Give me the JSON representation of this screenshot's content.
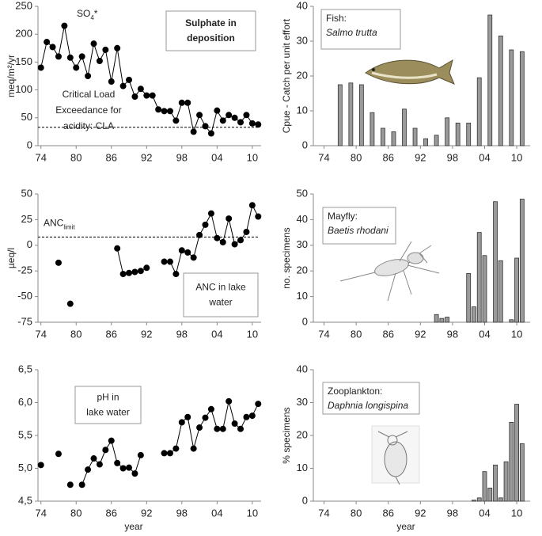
{
  "chart_data": [
    {
      "type": "line",
      "color": "#000000",
      "x": [
        1974,
        1975,
        1976,
        1977,
        1978,
        1979,
        1980,
        1981,
        1982,
        1983,
        1984,
        1985,
        1986,
        1987,
        1988,
        1989,
        1990,
        1991,
        1992,
        1993,
        1994,
        1995,
        1996,
        1997,
        1998,
        1999,
        2000,
        2001,
        2002,
        2003,
        2004,
        2005,
        2006,
        2007,
        2008,
        2009,
        2010,
        2011
      ],
      "values": [
        140,
        186,
        177,
        160,
        215,
        158,
        140,
        160,
        125,
        183,
        152,
        172,
        115,
        175,
        107,
        118,
        88,
        102,
        90,
        90,
        65,
        62,
        62,
        45,
        77,
        77,
        25,
        55,
        35,
        22,
        63,
        45,
        55,
        50,
        42,
        55,
        40,
        38
      ],
      "xlim": [
        1973.5,
        2011.5
      ],
      "xticks": [
        {
          "value": 1974,
          "label": "74"
        },
        {
          "value": 1980,
          "label": "80"
        },
        {
          "value": 1986,
          "label": "86"
        },
        {
          "value": 1992,
          "label": "92"
        },
        {
          "value": 1998,
          "label": "98"
        },
        {
          "value": 2004,
          "label": "04"
        },
        {
          "value": 2010,
          "label": "10"
        }
      ],
      "ylim": [
        0,
        250
      ],
      "yticks": [
        0,
        50,
        100,
        150,
        200,
        250
      ],
      "ylabel": "meq/m²/yr",
      "series_label": {
        "text": "SO",
        "sub": "4",
        "suffix": "*"
      },
      "reference": {
        "value": 33,
        "label": [
          "Critical Load",
          "Exceedance for",
          "acidity: CLA"
        ]
      },
      "box": [
        "Sulphate in",
        "deposition"
      ]
    },
    {
      "type": "line",
      "color": "#000000",
      "x": [
        1974,
        1975,
        1976,
        1977,
        1978,
        1979,
        1980,
        1981,
        1982,
        1983,
        1984,
        1985,
        1986,
        1987,
        1988,
        1989,
        1990,
        1991,
        1992,
        1993,
        1994,
        1995,
        1996,
        1997,
        1998,
        1999,
        2000,
        2001,
        2002,
        2003,
        2004,
        2005,
        2006,
        2007,
        2008,
        2009,
        2010,
        2011
      ],
      "values": [
        null,
        null,
        null,
        -17,
        null,
        -57,
        null,
        null,
        null,
        null,
        null,
        null,
        null,
        -3,
        -28,
        -27,
        -26,
        -25,
        -22,
        null,
        null,
        -16,
        -16,
        -28,
        -5,
        -7,
        -12,
        10,
        20,
        31,
        7,
        3,
        26,
        1,
        5,
        13,
        39,
        28
      ],
      "xlim": [
        1973.5,
        2011.5
      ],
      "xticks": [
        {
          "value": 1974,
          "label": "74"
        },
        {
          "value": 1980,
          "label": "80"
        },
        {
          "value": 1986,
          "label": "86"
        },
        {
          "value": 1992,
          "label": "92"
        },
        {
          "value": 1998,
          "label": "98"
        },
        {
          "value": 2004,
          "label": "04"
        },
        {
          "value": 2010,
          "label": "10"
        }
      ],
      "ylim": [
        -75,
        50
      ],
      "yticks": [
        -75,
        -50,
        -25,
        0,
        25,
        50
      ],
      "ylabel": "µeq/l",
      "reference": {
        "value": 8,
        "text": "ANC",
        "sub": "limit"
      },
      "box": [
        "ANC in lake",
        "water"
      ]
    },
    {
      "type": "line",
      "color": "#000000",
      "x": [
        1974,
        1975,
        1976,
        1977,
        1978,
        1979,
        1980,
        1981,
        1982,
        1983,
        1984,
        1985,
        1986,
        1987,
        1988,
        1989,
        1990,
        1991,
        1992,
        1993,
        1994,
        1995,
        1996,
        1997,
        1998,
        1999,
        2000,
        2001,
        2002,
        2003,
        2004,
        2005,
        2006,
        2007,
        2008,
        2009,
        2010,
        2011
      ],
      "values": [
        5.05,
        null,
        null,
        5.22,
        null,
        4.75,
        null,
        4.75,
        4.98,
        5.15,
        5.06,
        5.28,
        5.42,
        5.08,
        5.0,
        5.01,
        4.92,
        5.2,
        null,
        null,
        null,
        5.23,
        5.23,
        5.3,
        5.7,
        5.78,
        5.3,
        5.62,
        5.77,
        5.9,
        5.6,
        5.6,
        6.02,
        5.68,
        5.6,
        5.78,
        5.8,
        5.98
      ],
      "xlim": [
        1973.5,
        2011.5
      ],
      "xticks": [
        {
          "value": 1974,
          "label": "74"
        },
        {
          "value": 1980,
          "label": "80"
        },
        {
          "value": 1986,
          "label": "86"
        },
        {
          "value": 1992,
          "label": "92"
        },
        {
          "value": 1998,
          "label": "98"
        },
        {
          "value": 2004,
          "label": "04"
        },
        {
          "value": 2010,
          "label": "10"
        }
      ],
      "ylim": [
        4.5,
        6.5
      ],
      "yticks": [
        {
          "value": 4.5,
          "label": "4,5"
        },
        {
          "value": 5.0,
          "label": "5,0"
        },
        {
          "value": 5.5,
          "label": "5,5"
        },
        {
          "value": 6.0,
          "label": "6,0"
        },
        {
          "value": 6.5,
          "label": "6,5"
        }
      ],
      "xlabel": "year",
      "box": [
        "pH in",
        "lake water"
      ]
    },
    {
      "type": "bar",
      "color": "#9a9a9a",
      "x": [
        1977,
        1979,
        1981,
        1983,
        1985,
        1987,
        1989,
        1991,
        1993,
        1995,
        1997,
        1999,
        2001,
        2003,
        2005,
        2007,
        2009,
        2011
      ],
      "values": [
        17.5,
        18,
        17.5,
        9.5,
        5,
        4,
        10.5,
        5,
        2,
        3,
        8,
        6.5,
        6.5,
        19.5,
        37.5,
        31.5,
        27.5,
        27
      ],
      "xlim": [
        1972,
        2012.5
      ],
      "xticks": [
        {
          "value": 1974,
          "label": "74"
        },
        {
          "value": 1980,
          "label": "80"
        },
        {
          "value": 1986,
          "label": "86"
        },
        {
          "value": 1992,
          "label": "92"
        },
        {
          "value": 1998,
          "label": "98"
        },
        {
          "value": 2004,
          "label": "04"
        },
        {
          "value": 2010,
          "label": "10"
        }
      ],
      "ylim": [
        0,
        40
      ],
      "yticks": [
        0,
        10,
        20,
        30,
        40
      ],
      "ylabel": "Cpue - Catch per unit effort",
      "box": {
        "label": "Fish:",
        "species": "Salmo trutta"
      }
    },
    {
      "type": "bar",
      "color": "#9a9a9a",
      "x": [
        1995,
        1996,
        1997,
        2001,
        2002,
        2003,
        2004,
        2006,
        2007,
        2009,
        2010,
        2011
      ],
      "values": [
        3,
        1.5,
        2,
        19,
        6,
        35,
        26,
        47,
        24,
        1,
        25,
        48
      ],
      "xlim": [
        1972,
        2012.5
      ],
      "xticks": [
        {
          "value": 1974,
          "label": "74"
        },
        {
          "value": 1980,
          "label": "80"
        },
        {
          "value": 1986,
          "label": "86"
        },
        {
          "value": 1992,
          "label": "92"
        },
        {
          "value": 1998,
          "label": "98"
        },
        {
          "value": 2004,
          "label": "04"
        },
        {
          "value": 2010,
          "label": "10"
        }
      ],
      "ylim": [
        0,
        50
      ],
      "yticks": [
        0,
        10,
        20,
        30,
        40,
        50
      ],
      "ylabel": "no. specimens",
      "box": {
        "label": "Mayfly:",
        "species": "Baetis rhodani"
      }
    },
    {
      "type": "bar",
      "color": "#9a9a9a",
      "x": [
        2002,
        2003,
        2004,
        2005,
        2006,
        2007,
        2008,
        2009,
        2010,
        2011
      ],
      "values": [
        0.3,
        1,
        9,
        4,
        11,
        1,
        12,
        24,
        29.5,
        17.5
      ],
      "xlim": [
        1972,
        2012.5
      ],
      "xticks": [
        {
          "value": 1974,
          "label": "74"
        },
        {
          "value": 1980,
          "label": "80"
        },
        {
          "value": 1986,
          "label": "86"
        },
        {
          "value": 1992,
          "label": "92"
        },
        {
          "value": 1998,
          "label": "98"
        },
        {
          "value": 2004,
          "label": "04"
        },
        {
          "value": 2010,
          "label": "10"
        }
      ],
      "ylim": [
        0,
        40
      ],
      "yticks": [
        0,
        10,
        20,
        30,
        40
      ],
      "ylabel": "% specimens",
      "xlabel": "year",
      "box": {
        "label": "Zooplankton:",
        "species": "Daphnia longispina"
      }
    }
  ]
}
